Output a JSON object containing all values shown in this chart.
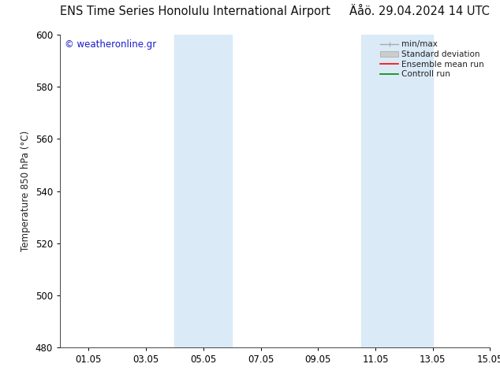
{
  "title_left": "ENS Time Series Honolulu International Airport",
  "title_right": "Äåö. 29.04.2024 14 UTC",
  "ylabel": "Temperature 850 hPa (°C)",
  "bg_color": "#ffffff",
  "plot_bg_color": "#ffffff",
  "shaded_bands": [
    {
      "x_start": 4.0,
      "x_end": 6.0,
      "color": "#daeaf7"
    },
    {
      "x_start": 10.5,
      "x_end": 13.0,
      "color": "#daeaf7"
    }
  ],
  "ylim": [
    480,
    600
  ],
  "xlim": [
    0.0,
    15.0
  ],
  "yticks": [
    480,
    500,
    520,
    540,
    560,
    580,
    600
  ],
  "xtick_positions": [
    1,
    3,
    5,
    7,
    9,
    11,
    13,
    15
  ],
  "xtick_labels": [
    "01.05",
    "03.05",
    "05.05",
    "07.05",
    "09.05",
    "11.05",
    "13.05",
    "15.05"
  ],
  "watermark_text": "© weatheronline.gr",
  "watermark_color": "#1a1acc",
  "legend_entries": [
    {
      "label": "min/max",
      "color": "#aaaaaa",
      "lw": 1.0
    },
    {
      "label": "Standard deviation",
      "color": "#cccccc",
      "lw": 5
    },
    {
      "label": "Ensemble mean run",
      "color": "#ff0000",
      "lw": 1.2
    },
    {
      "label": "Controll run",
      "color": "#008800",
      "lw": 1.2
    }
  ],
  "tick_label_fontsize": 8.5,
  "title_fontsize": 10.5,
  "ylabel_fontsize": 8.5,
  "watermark_fontsize": 8.5,
  "legend_fontsize": 7.5
}
